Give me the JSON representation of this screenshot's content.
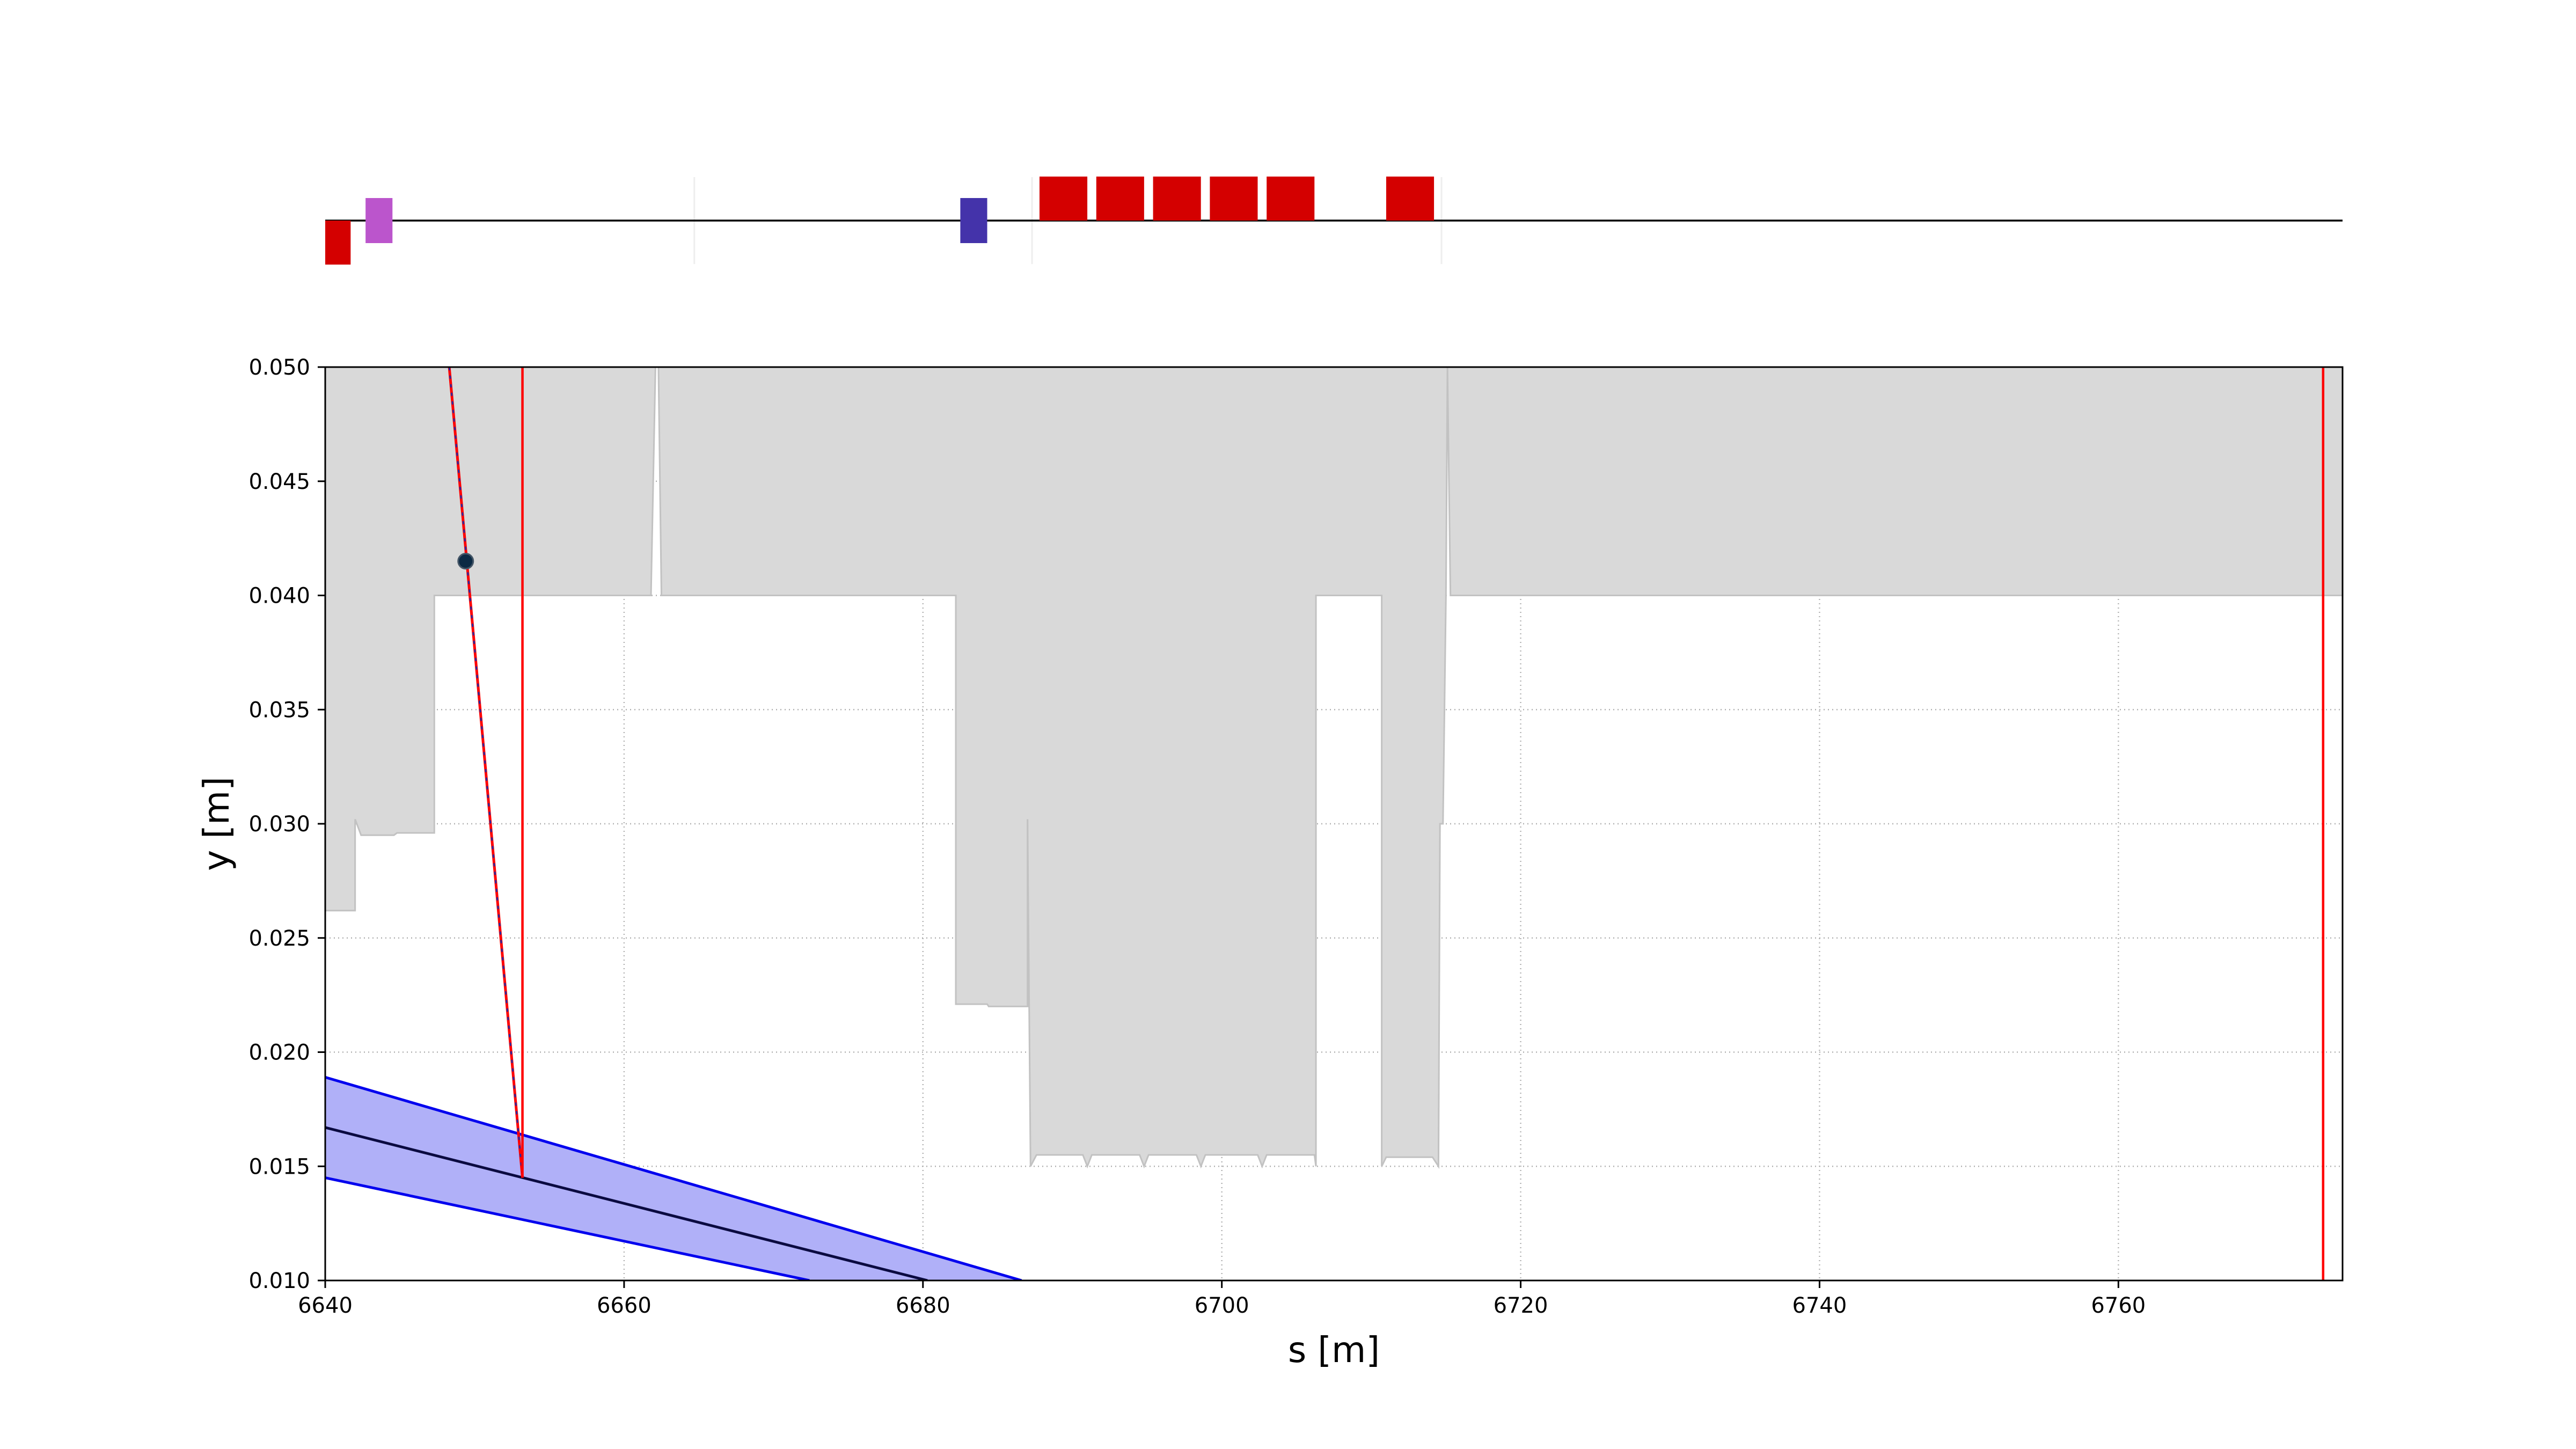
{
  "chart_data": {
    "type": "area",
    "title": "",
    "xlabel": "s [m]",
    "ylabel": "y [m]",
    "xlim": [
      6640,
      6775
    ],
    "ylim": [
      0.01,
      0.05
    ],
    "grid": true,
    "x_ticks": [
      6640,
      6660,
      6680,
      6700,
      6720,
      6740,
      6760
    ],
    "x_tick_labels": [
      "6640",
      "6660",
      "6680",
      "6700",
      "6720",
      "6740",
      "6760"
    ],
    "y_ticks": [
      0.01,
      0.015,
      0.02,
      0.025,
      0.03,
      0.035,
      0.04,
      0.045,
      0.05
    ],
    "y_tick_labels": [
      "0.010",
      "0.015",
      "0.020",
      "0.025",
      "0.030",
      "0.035",
      "0.040",
      "0.045",
      "0.050"
    ],
    "aperture": {
      "color": "#d9d9d9",
      "edge_color": "#c2c2c2",
      "points": [
        [
          6640.0,
          0.0262
        ],
        [
          6642.0,
          0.0262
        ],
        [
          6642.0,
          0.0302
        ],
        [
          6642.4,
          0.0295
        ],
        [
          6644.6,
          0.0295
        ],
        [
          6644.8,
          0.0296
        ],
        [
          6647.3,
          0.0296
        ],
        [
          6647.3,
          0.04
        ],
        [
          6661.8,
          0.04
        ],
        [
          6662.1,
          0.05
        ],
        [
          6662.3,
          0.05
        ],
        [
          6662.5,
          0.04
        ],
        [
          6682.2,
          0.04
        ],
        [
          6682.2,
          0.0221
        ],
        [
          6684.3,
          0.0221
        ],
        [
          6684.4,
          0.022
        ],
        [
          6687.0,
          0.022
        ],
        [
          6687.0,
          0.0302
        ],
        [
          6687.2,
          0.015
        ],
        [
          6687.6,
          0.0155
        ],
        [
          6690.7,
          0.0155
        ],
        [
          6691.0,
          0.015
        ],
        [
          6691.3,
          0.0155
        ],
        [
          6694.5,
          0.0155
        ],
        [
          6694.8,
          0.015
        ],
        [
          6695.1,
          0.0155
        ],
        [
          6698.3,
          0.0155
        ],
        [
          6698.6,
          0.015
        ],
        [
          6698.9,
          0.0155
        ],
        [
          6702.4,
          0.0155
        ],
        [
          6702.7,
          0.015
        ],
        [
          6703.0,
          0.0155
        ],
        [
          6706.2,
          0.0155
        ],
        [
          6706.3,
          0.015
        ],
        [
          6706.3,
          0.04
        ],
        [
          6710.7,
          0.04
        ],
        [
          6710.7,
          0.015
        ],
        [
          6711.0,
          0.0154
        ],
        [
          6714.1,
          0.0154
        ],
        [
          6714.5,
          0.015
        ],
        [
          6714.6,
          0.03
        ],
        [
          6714.8,
          0.03
        ],
        [
          6715.0,
          0.04
        ],
        [
          6715.1,
          0.05
        ],
        [
          6715.3,
          0.04
        ],
        [
          6775.0,
          0.04
        ]
      ]
    },
    "series": [
      {
        "type": "band",
        "color": "#0000ee",
        "fill": "#b0b0f8",
        "x": [
          6640,
          6686.6
        ],
        "upper": [
          0.0189,
          0.01
        ],
        "center": [
          0.0167,
          0.01
        ],
        "lower": [
          0.0145,
          0.01
        ],
        "center_end": [
          6680.3,
          0.01
        ],
        "lower_end": [
          6672.4,
          0.01
        ]
      },
      {
        "type": "line",
        "color": "#ff0000",
        "style": "solid-with-blue-dashes",
        "x": [
          6648.3,
          6653.2
        ],
        "y": [
          0.05,
          0.0145
        ]
      },
      {
        "type": "vline",
        "color": "#ff0000",
        "x": 6653.2,
        "y": [
          0.0145,
          0.05
        ]
      },
      {
        "type": "vline",
        "color": "#ff0000",
        "x": 6773.7,
        "y": [
          0.01,
          0.05
        ]
      },
      {
        "type": "marker",
        "color": "#0b2a44",
        "x": 6649.4,
        "y": 0.0415
      }
    ],
    "lattice": {
      "baseline_color": "#000000",
      "elements": [
        {
          "s": 6640.0,
          "len": 1.7,
          "side": "below",
          "color": "#d40000"
        },
        {
          "s": 6642.7,
          "len": 1.8,
          "side": "both",
          "color": "#bb55cc"
        },
        {
          "s": 6682.5,
          "len": 1.8,
          "side": "both",
          "color": "#4433aa"
        },
        {
          "s": 6687.8,
          "len": 3.2,
          "side": "above",
          "color": "#d40000"
        },
        {
          "s": 6691.6,
          "len": 3.2,
          "side": "above",
          "color": "#d40000"
        },
        {
          "s": 6695.4,
          "len": 3.2,
          "side": "above",
          "color": "#d40000"
        },
        {
          "s": 6699.2,
          "len": 3.2,
          "side": "above",
          "color": "#d40000"
        },
        {
          "s": 6703.0,
          "len": 3.2,
          "side": "above",
          "color": "#d40000"
        },
        {
          "s": 6711.0,
          "len": 3.2,
          "side": "above",
          "color": "#d40000"
        }
      ],
      "faint_markers": [
        6664.7,
        6687.3,
        6714.7
      ]
    }
  }
}
